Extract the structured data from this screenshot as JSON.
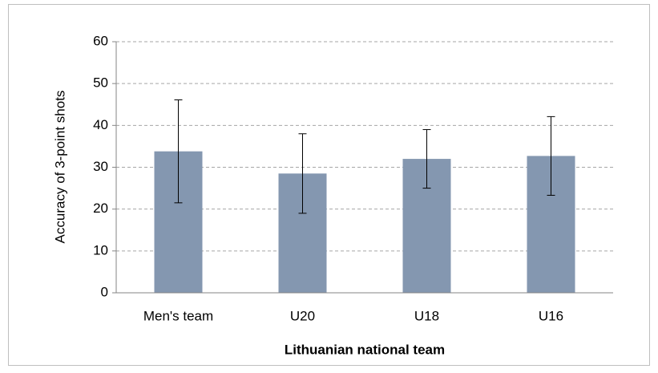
{
  "chart_data": {
    "type": "bar",
    "x_label": "Lithuanian national team",
    "y_label": "Accuracy of 3-point shots",
    "categories": [
      "Men's team",
      "U20",
      "U18",
      "U16"
    ],
    "values": [
      33.8,
      28.5,
      32,
      32.7
    ],
    "errors": [
      12.3,
      9.5,
      7,
      9.4
    ],
    "color": "#8497b0",
    "ylim": [
      0,
      60
    ],
    "yticks": [
      0,
      10,
      20,
      30,
      40,
      50,
      60
    ],
    "grid": true
  }
}
